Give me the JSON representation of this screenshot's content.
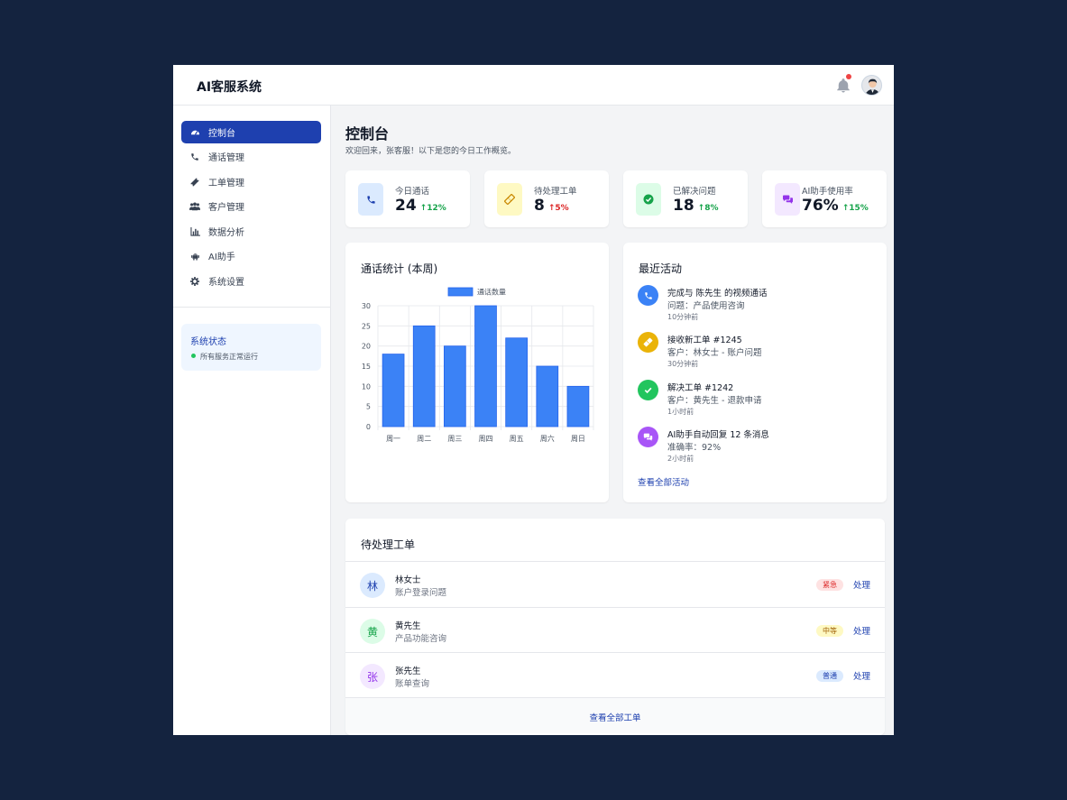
{
  "header": {
    "brand": "AI客服系统"
  },
  "sidebar": {
    "items": [
      {
        "label": "控制台",
        "icon": "dashboard-icon",
        "active": true
      },
      {
        "label": "通话管理",
        "icon": "phone-icon"
      },
      {
        "label": "工单管理",
        "icon": "ticket-icon"
      },
      {
        "label": "客户管理",
        "icon": "users-icon"
      },
      {
        "label": "数据分析",
        "icon": "bar-chart-icon"
      },
      {
        "label": "AI助手",
        "icon": "robot-icon"
      },
      {
        "label": "系统设置",
        "icon": "gear-icon"
      }
    ],
    "status": {
      "title": "系统状态",
      "text": "所有服务正常运行"
    }
  },
  "page": {
    "title": "控制台",
    "subtitle": "欢迎回来，张客服！以下是您的今日工作概览。"
  },
  "stats": [
    {
      "label": "今日通话",
      "value": "24",
      "change": "12%",
      "trend": "up",
      "icon": "phone-icon",
      "bg": "#dbeafe",
      "fg": "#1e40af"
    },
    {
      "label": "待处理工单",
      "value": "8",
      "change": "5%",
      "trend": "up",
      "icon": "ticket-icon",
      "bg": "#fef9c3",
      "fg": "#ca8a04",
      "change_color": "#dc2626"
    },
    {
      "label": "已解决问题",
      "value": "18",
      "change": "8%",
      "trend": "up",
      "icon": "check-circle-icon",
      "bg": "#dcfce7",
      "fg": "#16a34a"
    },
    {
      "label": "AI助手使用率",
      "value": "76%",
      "change": "15%",
      "trend": "up",
      "icon": "chat-icon",
      "bg": "#f3e8ff",
      "fg": "#9333ea"
    }
  ],
  "chart_card": {
    "title": "通话统计 (本周)"
  },
  "chart_data": {
    "type": "bar",
    "categories": [
      "周一",
      "周二",
      "周三",
      "周四",
      "周五",
      "周六",
      "周日"
    ],
    "series": [
      {
        "name": "通话数量",
        "values": [
          18,
          25,
          20,
          30,
          22,
          15,
          10
        ]
      }
    ],
    "ylim": [
      0,
      30
    ],
    "yticks": [
      0,
      5,
      10,
      15,
      20,
      25,
      30
    ],
    "legend": "top",
    "grid": true,
    "color": "#3b82f6"
  },
  "activity": {
    "title": "最近活动",
    "items": [
      {
        "title": "完成与 陈先生 的视频通话",
        "detail": "问题：产品使用咨询",
        "time": "10分钟前",
        "icon": "phone-icon",
        "color": "#3b82f6"
      },
      {
        "title": "接收新工单 #1245",
        "detail": "客户：林女士 - 账户问题",
        "time": "30分钟前",
        "icon": "ticket-icon",
        "color": "#eab308"
      },
      {
        "title": "解决工单 #1242",
        "detail": "客户：黄先生 - 退款申请",
        "time": "1小时前",
        "icon": "check-icon",
        "color": "#22c55e"
      },
      {
        "title": "AI助手自动回复 12 条消息",
        "detail": "准确率：92%",
        "time": "2小时前",
        "icon": "chat-icon",
        "color": "#a855f7"
      }
    ],
    "view_all": "查看全部活动"
  },
  "tickets": {
    "title": "待处理工单",
    "rows": [
      {
        "avatar": "林",
        "name": "林女士",
        "desc": "账户登录问题",
        "priority": "紧急",
        "action": "处理",
        "av_bg": "#dbeafe",
        "av_fg": "#1e40af",
        "badge_bg": "#fee2e2",
        "badge_fg": "#dc2626"
      },
      {
        "avatar": "黄",
        "name": "黄先生",
        "desc": "产品功能咨询",
        "priority": "中等",
        "action": "处理",
        "av_bg": "#dcfce7",
        "av_fg": "#16a34a",
        "badge_bg": "#fef9c3",
        "badge_fg": "#a16207"
      },
      {
        "avatar": "张",
        "name": "张先生",
        "desc": "账单查询",
        "priority": "普通",
        "action": "处理",
        "av_bg": "#f3e8ff",
        "av_fg": "#9333ea",
        "badge_bg": "#dbeafe",
        "badge_fg": "#1e40af"
      }
    ],
    "view_all": "查看全部工单"
  }
}
